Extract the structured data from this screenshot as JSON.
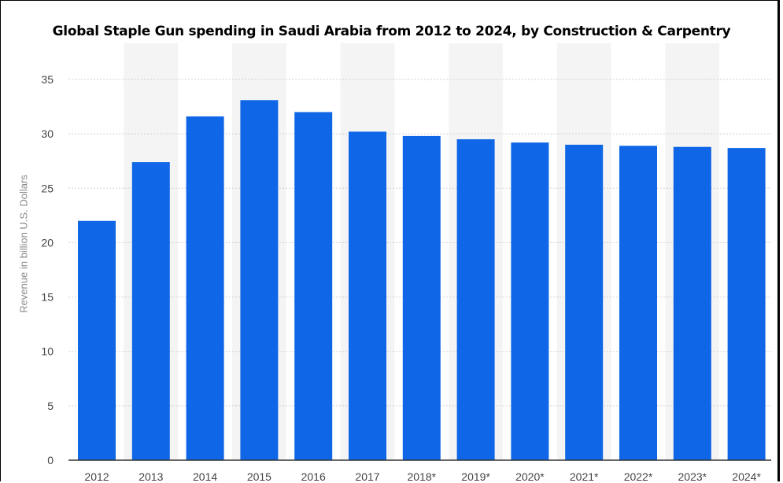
{
  "chart_data": {
    "type": "bar",
    "title": "Global Staple Gun spending in Saudi Arabia from 2012 to 2024, by Construction & Carpentry",
    "xlabel": "",
    "ylabel": "Revenue in billion U.S. Dollars",
    "categories": [
      "2012",
      "2013",
      "2014",
      "2015",
      "2016",
      "2017",
      "2018*",
      "2019*",
      "2020*",
      "2021*",
      "2022*",
      "2023*",
      "2024*"
    ],
    "values": [
      22.0,
      27.4,
      31.6,
      33.1,
      32.0,
      30.2,
      29.8,
      29.5,
      29.2,
      29.0,
      28.9,
      28.8,
      28.7
    ],
    "ylim": [
      0,
      35
    ],
    "yticks": [
      0,
      5,
      10,
      15,
      20,
      25,
      30,
      35
    ],
    "grid": true,
    "legend": "none",
    "bar_color": "#0f66e6",
    "band_color": "#f4f4f4",
    "grid_color": "#d0d0d0"
  }
}
